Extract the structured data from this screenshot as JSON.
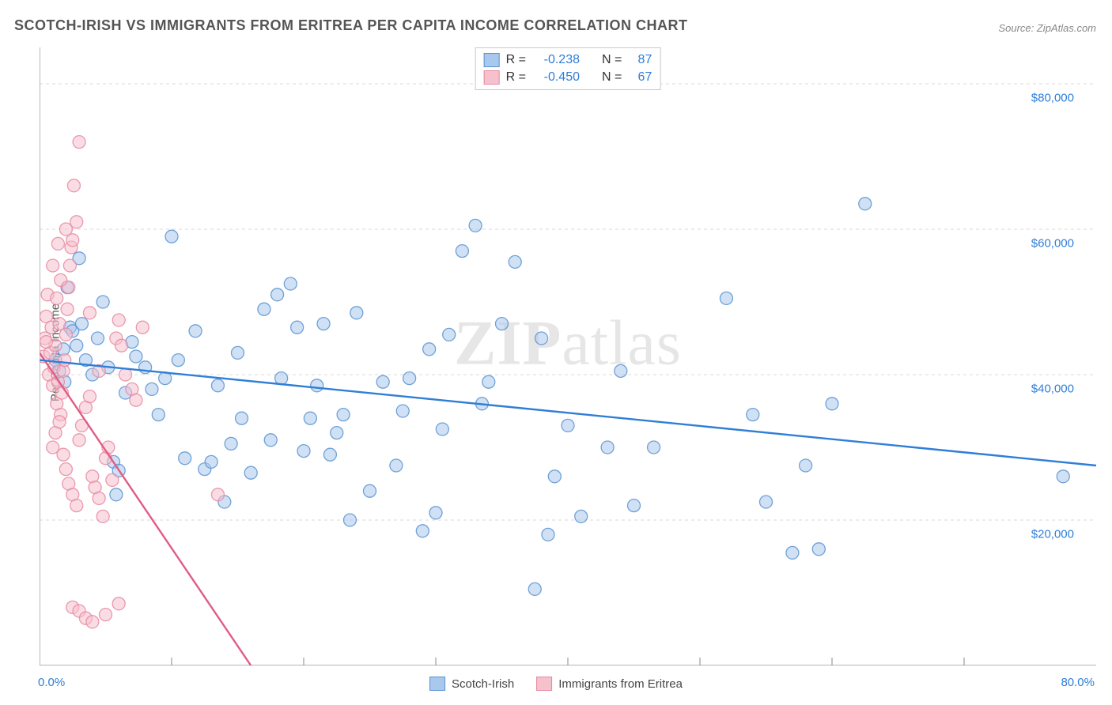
{
  "title": "SCOTCH-IRISH VS IMMIGRANTS FROM ERITREA PER CAPITA INCOME CORRELATION CHART",
  "source_label": "Source: ZipAtlas.com",
  "watermark": {
    "bold": "ZIP",
    "rest": "atlas"
  },
  "y_axis_label": "Per Capita Income",
  "chart": {
    "type": "scatter",
    "xlim": [
      0,
      80
    ],
    "ylim": [
      0,
      85000
    ],
    "x_min_label": "0.0%",
    "x_max_label": "80.0%",
    "y_ticks": [
      20000,
      40000,
      60000,
      80000
    ],
    "y_tick_labels": [
      "$20,000",
      "$40,000",
      "$60,000",
      "$80,000"
    ],
    "x_tick_positions": [
      10,
      20,
      30,
      40,
      50,
      60,
      70
    ],
    "grid_color": "#d8d8d8",
    "axis_color": "#888888",
    "background_color": "#ffffff",
    "marker_radius": 8,
    "marker_opacity": 0.55,
    "line_width": 2.4
  },
  "series": [
    {
      "name": "Scotch-Irish",
      "fill_color": "#a9c8ed",
      "stroke_color": "#5b93d0",
      "line_color": "#2f7ed8",
      "R": "-0.238",
      "N": "87",
      "trend": {
        "x1": 0,
        "y1": 42000,
        "x2": 80,
        "y2": 27500
      },
      "points": [
        [
          1.2,
          42000
        ],
        [
          1.5,
          40500
        ],
        [
          1.8,
          43500
        ],
        [
          1.9,
          39000
        ],
        [
          2.1,
          52000
        ],
        [
          2.3,
          46500
        ],
        [
          2.5,
          46000
        ],
        [
          2.8,
          44000
        ],
        [
          3.0,
          56000
        ],
        [
          3.2,
          47000
        ],
        [
          3.5,
          42000
        ],
        [
          4.0,
          40000
        ],
        [
          4.4,
          45000
        ],
        [
          4.8,
          50000
        ],
        [
          5.2,
          41000
        ],
        [
          5.6,
          28000
        ],
        [
          5.8,
          23500
        ],
        [
          6.0,
          26800
        ],
        [
          6.5,
          37500
        ],
        [
          7.0,
          44500
        ],
        [
          7.3,
          42500
        ],
        [
          8.0,
          41000
        ],
        [
          8.5,
          38000
        ],
        [
          9.0,
          34500
        ],
        [
          9.5,
          39500
        ],
        [
          10.0,
          59000
        ],
        [
          10.5,
          42000
        ],
        [
          11.0,
          28500
        ],
        [
          11.8,
          46000
        ],
        [
          12.5,
          27000
        ],
        [
          13.0,
          28000
        ],
        [
          13.5,
          38500
        ],
        [
          14.0,
          22500
        ],
        [
          14.5,
          30500
        ],
        [
          15.0,
          43000
        ],
        [
          15.3,
          34000
        ],
        [
          16.0,
          26500
        ],
        [
          17.0,
          49000
        ],
        [
          17.5,
          31000
        ],
        [
          18.0,
          51000
        ],
        [
          18.3,
          39500
        ],
        [
          19.0,
          52500
        ],
        [
          19.5,
          46500
        ],
        [
          20.0,
          29500
        ],
        [
          20.5,
          34000
        ],
        [
          21.0,
          38500
        ],
        [
          21.5,
          47000
        ],
        [
          22.0,
          29000
        ],
        [
          22.5,
          32000
        ],
        [
          23.0,
          34500
        ],
        [
          23.5,
          20000
        ],
        [
          24.0,
          48500
        ],
        [
          25.0,
          24000
        ],
        [
          26.0,
          39000
        ],
        [
          27.0,
          27500
        ],
        [
          27.5,
          35000
        ],
        [
          28.0,
          39500
        ],
        [
          29.0,
          18500
        ],
        [
          29.5,
          43500
        ],
        [
          30.0,
          21000
        ],
        [
          30.5,
          32500
        ],
        [
          31.0,
          45500
        ],
        [
          32.0,
          57000
        ],
        [
          33.0,
          60500
        ],
        [
          33.5,
          36000
        ],
        [
          34.0,
          39000
        ],
        [
          35.0,
          47000
        ],
        [
          36.0,
          55500
        ],
        [
          37.5,
          10500
        ],
        [
          38.0,
          45000
        ],
        [
          38.5,
          18000
        ],
        [
          39.0,
          26000
        ],
        [
          40.0,
          33000
        ],
        [
          41.0,
          20500
        ],
        [
          43.0,
          30000
        ],
        [
          44.0,
          40500
        ],
        [
          45.0,
          22000
        ],
        [
          46.5,
          30000
        ],
        [
          52.0,
          50500
        ],
        [
          54.0,
          34500
        ],
        [
          55.0,
          22500
        ],
        [
          57.0,
          15500
        ],
        [
          58.0,
          27500
        ],
        [
          59.0,
          16000
        ],
        [
          60.0,
          36000
        ],
        [
          62.5,
          63500
        ],
        [
          77.5,
          26000
        ]
      ]
    },
    {
      "name": "Immigrants from Eritrea",
      "fill_color": "#f5c1cd",
      "stroke_color": "#e788a1",
      "line_color": "#e05c85",
      "R": "-0.450",
      "N": "67",
      "trend": {
        "x1": 0,
        "y1": 43000,
        "x2": 16,
        "y2": 0
      },
      "points": [
        [
          0.3,
          42500
        ],
        [
          0.4,
          45000
        ],
        [
          0.5,
          48000
        ],
        [
          0.6,
          51000
        ],
        [
          0.7,
          40000
        ],
        [
          0.8,
          43000
        ],
        [
          0.9,
          46500
        ],
        [
          1.0,
          38500
        ],
        [
          1.1,
          41000
        ],
        [
          1.2,
          44000
        ],
        [
          1.3,
          36000
        ],
        [
          1.4,
          39000
        ],
        [
          1.5,
          47000
        ],
        [
          1.6,
          34500
        ],
        [
          1.7,
          37500
        ],
        [
          1.8,
          40500
        ],
        [
          1.9,
          42000
        ],
        [
          2.0,
          45500
        ],
        [
          2.1,
          49000
        ],
        [
          2.2,
          52000
        ],
        [
          2.3,
          55000
        ],
        [
          2.4,
          57500
        ],
        [
          2.5,
          58500
        ],
        [
          2.6,
          66000
        ],
        [
          2.8,
          61000
        ],
        [
          3.0,
          72000
        ],
        [
          1.0,
          30000
        ],
        [
          1.2,
          32000
        ],
        [
          1.5,
          33500
        ],
        [
          1.8,
          29000
        ],
        [
          2.0,
          27000
        ],
        [
          2.2,
          25000
        ],
        [
          2.5,
          23500
        ],
        [
          2.8,
          22000
        ],
        [
          3.0,
          31000
        ],
        [
          3.2,
          33000
        ],
        [
          3.5,
          35500
        ],
        [
          3.8,
          37000
        ],
        [
          4.0,
          26000
        ],
        [
          4.2,
          24500
        ],
        [
          4.5,
          23000
        ],
        [
          4.8,
          20500
        ],
        [
          5.0,
          28500
        ],
        [
          5.2,
          30000
        ],
        [
          5.5,
          25500
        ],
        [
          5.8,
          45000
        ],
        [
          6.0,
          47500
        ],
        [
          6.2,
          44000
        ],
        [
          6.5,
          40000
        ],
        [
          7.0,
          38000
        ],
        [
          7.3,
          36500
        ],
        [
          7.8,
          46500
        ],
        [
          2.5,
          8000
        ],
        [
          3.0,
          7500
        ],
        [
          3.5,
          6500
        ],
        [
          4.0,
          6000
        ],
        [
          5.0,
          7000
        ],
        [
          6.0,
          8500
        ],
        [
          1.0,
          55000
        ],
        [
          1.3,
          50500
        ],
        [
          1.6,
          53000
        ],
        [
          1.4,
          58000
        ],
        [
          2.0,
          60000
        ],
        [
          13.5,
          23500
        ],
        [
          4.5,
          40500
        ],
        [
          3.8,
          48500
        ],
        [
          0.5,
          44500
        ]
      ]
    }
  ],
  "stats_legend": {
    "R_label": "R =",
    "N_label": "N ="
  },
  "bottom_legend_labels": [
    "Scotch-Irish",
    "Immigrants from Eritrea"
  ]
}
